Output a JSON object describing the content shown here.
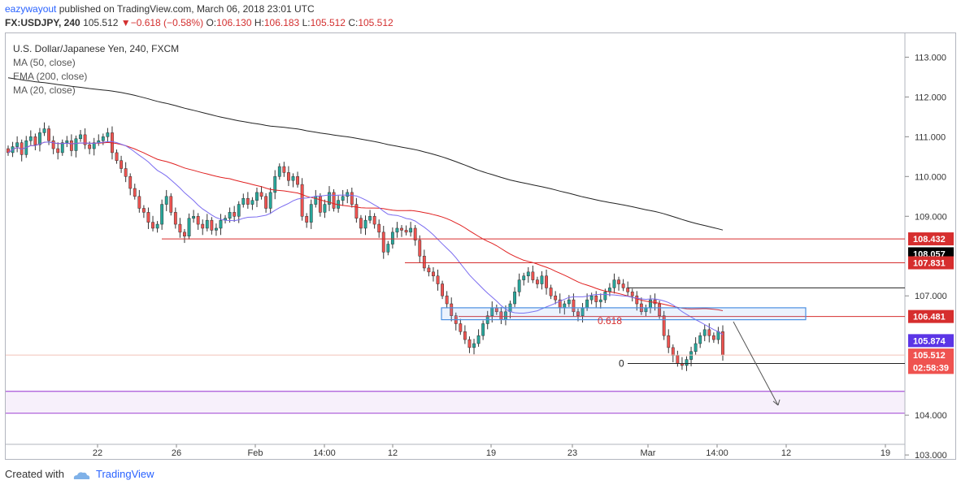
{
  "header": {
    "user": "eazywayout",
    "published": "published on TradingView.com, March 06, 2018 23:01 UTC",
    "symbol": "FX:USDJPY, 240",
    "last": "105.512",
    "change": "−0.618 (−0.58%)",
    "o_label": "O:",
    "o": "106.130",
    "h_label": "H:",
    "h": "106.183",
    "l_label": "L:",
    "l": "105.512",
    "c_label": "C:",
    "c": "105.512"
  },
  "legend": {
    "title": "U.S. Dollar/Japanese Yen, 240, FXCM",
    "items": [
      "MA (50, close)",
      "EMA (200, close)",
      "MA (20, close)"
    ]
  },
  "footer": {
    "created": "Created with",
    "brand": "TradingView"
  },
  "colors": {
    "up": "#26a69a",
    "down": "#ef5350",
    "wick": "#333333",
    "ma50": "#e02020",
    "ema200": "#222222",
    "ma20": "#7b6cf0",
    "level": "#d62e2e",
    "band": "#a855d8",
    "box": "#4a8fe0"
  },
  "chart_data": {
    "type": "candlestick",
    "y_ticks": [
      "113.000",
      "112.000",
      "111.000",
      "110.000",
      "109.000",
      "107.000",
      "104.000",
      "103.000"
    ],
    "ylim": [
      102.9,
      113.6
    ],
    "x_ticks": [
      "22",
      "26",
      "Feb",
      "14:00",
      "12",
      "19",
      "23",
      "Mar",
      "14:00",
      "12",
      "19"
    ],
    "price_labels": [
      {
        "value": "108.432",
        "color": "#d62e2e"
      },
      {
        "value": "108.057",
        "color": "#000000"
      },
      {
        "value": "107.831",
        "color": "#d62e2e"
      },
      {
        "value": "106.481",
        "color": "#d62e2e"
      },
      {
        "value": "105.874",
        "color": "#5b35e6"
      },
      {
        "value": "105.512",
        "color": "#ef5350"
      },
      {
        "value": "02:58:39",
        "color": "#ef5350"
      }
    ],
    "fib_labels": [
      "0.618",
      "0"
    ],
    "closes": [
      110.6,
      110.75,
      110.85,
      110.55,
      110.9,
      111.0,
      110.8,
      111.1,
      111.2,
      110.9,
      110.7,
      110.6,
      110.85,
      110.9,
      110.65,
      110.95,
      111.05,
      110.8,
      110.7,
      110.85,
      110.9,
      111.0,
      111.1,
      110.6,
      110.4,
      110.2,
      110.0,
      109.7,
      109.5,
      109.2,
      109.1,
      108.85,
      108.7,
      108.8,
      109.3,
      109.5,
      109.1,
      108.8,
      108.6,
      108.5,
      108.95,
      109.0,
      108.8,
      108.7,
      108.9,
      108.65,
      108.7,
      108.9,
      108.95,
      109.1,
      109.0,
      109.3,
      109.45,
      109.3,
      109.4,
      109.6,
      109.5,
      109.2,
      109.6,
      110.0,
      110.25,
      110.1,
      109.9,
      110.0,
      109.8,
      109.0,
      108.85,
      109.3,
      109.5,
      109.1,
      109.3,
      109.6,
      109.2,
      109.4,
      109.5,
      109.6,
      109.3,
      108.95,
      108.7,
      108.9,
      109.0,
      108.8,
      108.6,
      108.1,
      108.3,
      108.6,
      108.7,
      108.65,
      108.6,
      108.7,
      108.4,
      108.0,
      107.7,
      107.6,
      107.5,
      107.3,
      107.0,
      106.8,
      106.5,
      106.3,
      106.1,
      105.9,
      105.7,
      105.8,
      106.0,
      106.3,
      106.5,
      106.7,
      106.6,
      106.4,
      106.6,
      106.8,
      107.1,
      107.4,
      107.5,
      107.6,
      107.4,
      107.3,
      107.5,
      107.2,
      107.0,
      106.9,
      106.7,
      106.8,
      106.9,
      106.6,
      106.5,
      106.7,
      106.9,
      107.0,
      106.85,
      106.9,
      107.1,
      107.2,
      107.4,
      107.3,
      107.2,
      107.1,
      107.0,
      106.8,
      106.6,
      106.7,
      106.9,
      106.8,
      106.5,
      106.0,
      105.7,
      105.5,
      105.3,
      105.25,
      105.4,
      105.6,
      105.8,
      106.0,
      106.15,
      106.0,
      105.9,
      106.1,
      105.512
    ]
  }
}
